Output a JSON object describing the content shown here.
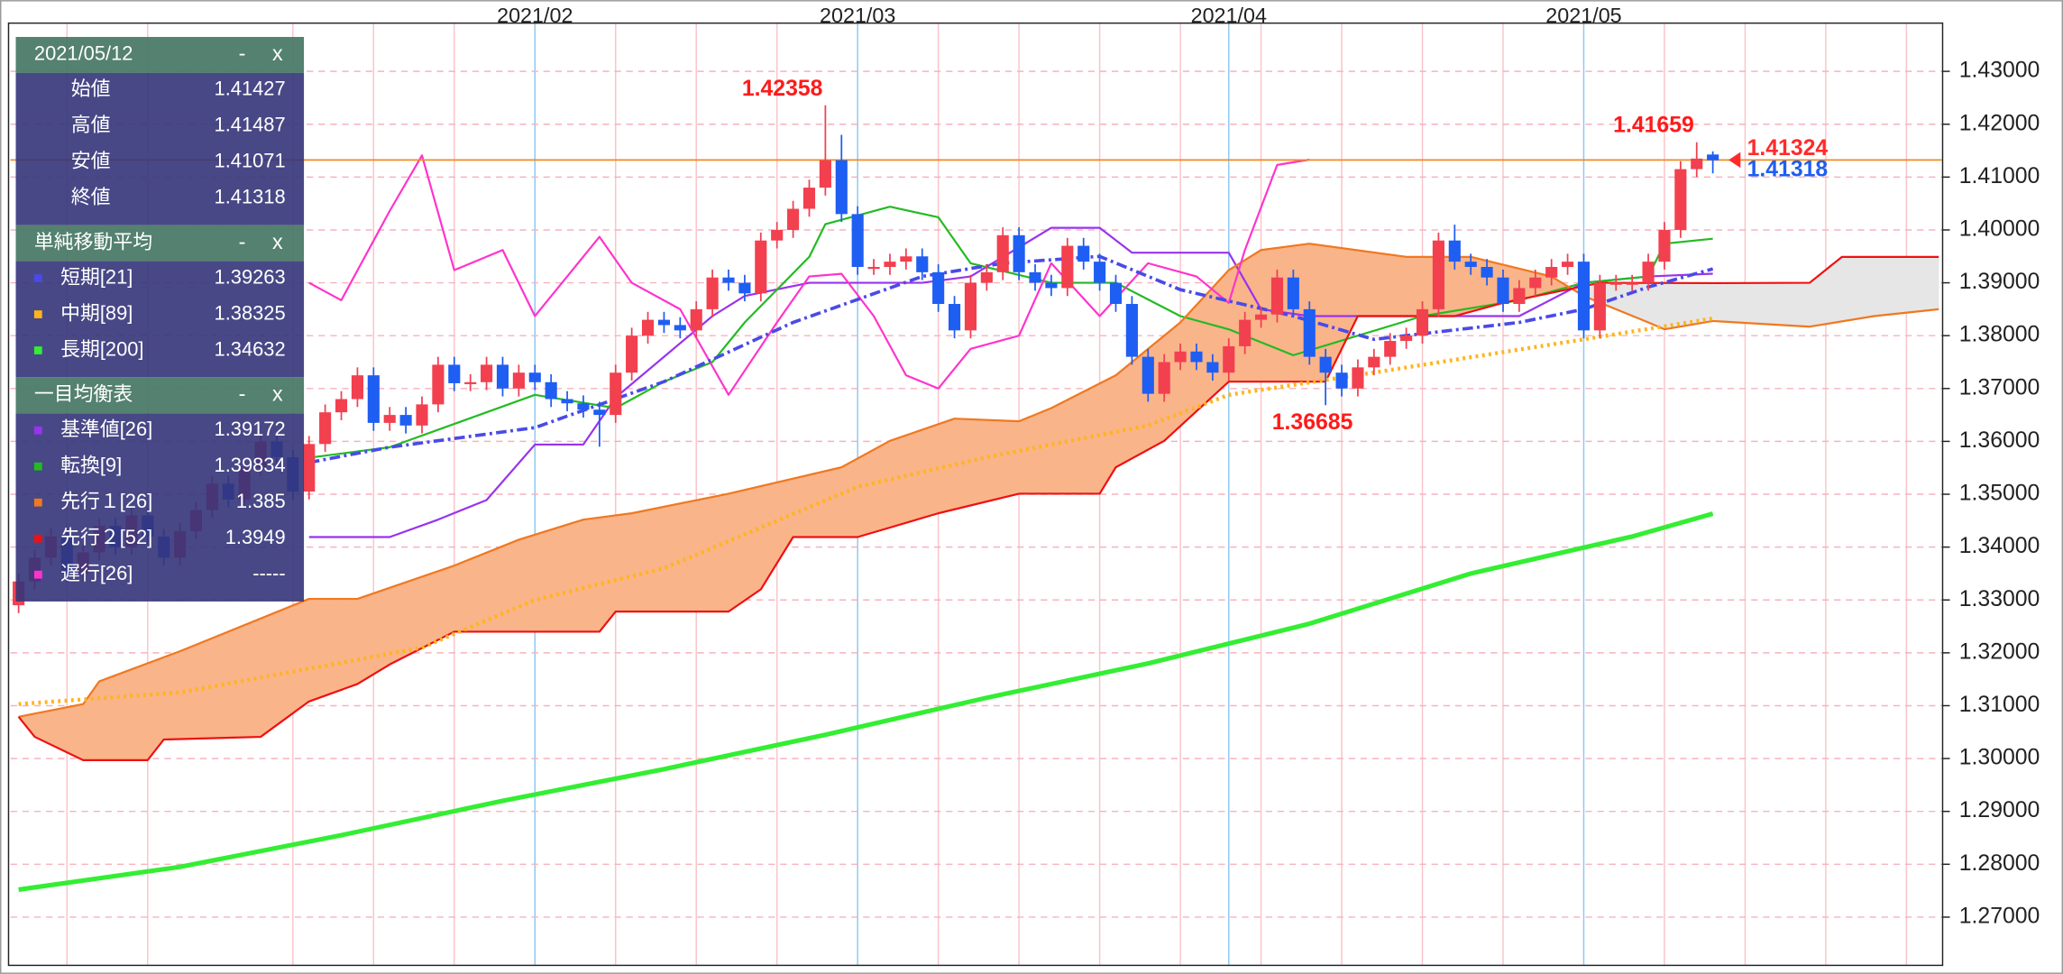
{
  "chart_data": {
    "type": "candlestick",
    "xlim": [
      -0.5,
      119.2
    ],
    "xticks": [
      {
        "value": 32,
        "label": "2021/02"
      },
      {
        "value": 52,
        "label": "2021/03"
      },
      {
        "value": 75,
        "label": "2021/04"
      },
      {
        "value": 97,
        "label": "2021/05"
      }
    ],
    "xgrid": [
      3,
      8,
      17,
      22,
      27,
      37,
      42,
      47,
      57,
      62,
      67,
      72,
      77,
      82,
      87,
      92,
      102,
      107,
      112,
      117
    ],
    "ylim": [
      1.261,
      1.439
    ],
    "yticks": [
      {
        "value": 1.27,
        "label": "1.27000"
      },
      {
        "value": 1.28,
        "label": "1.28000"
      },
      {
        "value": 1.29,
        "label": "1.29000"
      },
      {
        "value": 1.3,
        "label": "1.30000"
      },
      {
        "value": 1.31,
        "label": "1.31000"
      },
      {
        "value": 1.32,
        "label": "1.32000"
      },
      {
        "value": 1.33,
        "label": "1.33000"
      },
      {
        "value": 1.34,
        "label": "1.34000"
      },
      {
        "value": 1.35,
        "label": "1.35000"
      },
      {
        "value": 1.36,
        "label": "1.36000"
      },
      {
        "value": 1.37,
        "label": "1.37000"
      },
      {
        "value": 1.38,
        "label": "1.38000"
      },
      {
        "value": 1.39,
        "label": "1.39000"
      },
      {
        "value": 1.4,
        "label": "1.40000"
      },
      {
        "value": 1.41,
        "label": "1.41000"
      },
      {
        "value": 1.42,
        "label": "1.42000"
      },
      {
        "value": 1.43,
        "label": "1.43000"
      }
    ],
    "grid": true,
    "candles": {
      "up_color": "#f2404f",
      "down_color": "#1f5ef2",
      "open": [
        1.329,
        1.3335,
        1.338,
        1.342,
        1.335,
        1.339,
        1.344,
        1.34,
        1.346,
        1.342,
        1.338,
        1.343,
        1.347,
        1.352,
        1.349,
        1.355,
        1.36,
        1.357,
        1.3505,
        1.3595,
        1.3655,
        1.368,
        1.3725,
        1.3635,
        1.365,
        1.363,
        1.367,
        1.3745,
        1.371,
        1.3712,
        1.3745,
        1.37,
        1.373,
        1.3712,
        1.368,
        1.3672,
        1.366,
        1.365,
        1.373,
        1.38,
        1.383,
        1.382,
        1.381,
        1.385,
        1.391,
        1.39,
        1.388,
        1.398,
        1.4,
        1.404,
        1.408,
        1.4132,
        1.403,
        1.393,
        1.393,
        1.394,
        1.395,
        1.392,
        1.386,
        1.381,
        1.39,
        1.392,
        1.399,
        1.392,
        1.39,
        1.389,
        1.397,
        1.394,
        1.39,
        1.386,
        1.376,
        1.369,
        1.375,
        1.377,
        1.375,
        1.373,
        1.378,
        1.383,
        1.384,
        1.391,
        1.385,
        1.376,
        1.373,
        1.37,
        1.374,
        1.376,
        1.379,
        1.38,
        1.385,
        1.398,
        1.394,
        1.393,
        1.391,
        1.386,
        1.389,
        1.391,
        1.393,
        1.394,
        1.381,
        1.39,
        1.39,
        1.39,
        1.394,
        1.4,
        1.4115,
        1.41427
      ],
      "high": [
        1.335,
        1.3395,
        1.3435,
        1.3435,
        1.3405,
        1.3455,
        1.3455,
        1.3475,
        1.3475,
        1.3435,
        1.3445,
        1.3485,
        1.3535,
        1.3535,
        1.3565,
        1.3615,
        1.3615,
        1.3585,
        1.361,
        1.367,
        1.3695,
        1.374,
        1.374,
        1.3665,
        1.3665,
        1.3685,
        1.376,
        1.376,
        1.3727,
        1.376,
        1.376,
        1.3745,
        1.3745,
        1.3727,
        1.3695,
        1.3687,
        1.3675,
        1.3745,
        1.3815,
        1.3845,
        1.3845,
        1.3835,
        1.3865,
        1.3925,
        1.3925,
        1.3915,
        1.3995,
        1.4015,
        1.4055,
        1.4095,
        1.42358,
        1.418,
        1.4045,
        1.3945,
        1.3955,
        1.3965,
        1.3965,
        1.3935,
        1.3875,
        1.3915,
        1.3935,
        1.4005,
        1.4005,
        1.3935,
        1.3915,
        1.3985,
        1.3985,
        1.3955,
        1.3915,
        1.3875,
        1.3775,
        1.3765,
        1.3785,
        1.3785,
        1.3765,
        1.3795,
        1.3845,
        1.3855,
        1.3925,
        1.3925,
        1.3865,
        1.3775,
        1.3745,
        1.3755,
        1.3775,
        1.3805,
        1.3815,
        1.3865,
        1.3995,
        1.401,
        1.3955,
        1.3945,
        1.3925,
        1.3905,
        1.3925,
        1.3945,
        1.3955,
        1.3955,
        1.3915,
        1.3915,
        1.3915,
        1.3955,
        1.4015,
        1.413,
        1.41659,
        1.41487
      ],
      "low": [
        1.3275,
        1.332,
        1.3365,
        1.3335,
        1.3335,
        1.3375,
        1.3385,
        1.3385,
        1.3405,
        1.3365,
        1.3365,
        1.3415,
        1.3455,
        1.3475,
        1.3475,
        1.3535,
        1.3555,
        1.349,
        1.349,
        1.358,
        1.364,
        1.3665,
        1.362,
        1.362,
        1.3615,
        1.3615,
        1.3655,
        1.3695,
        1.3695,
        1.3697,
        1.3685,
        1.3685,
        1.3697,
        1.3665,
        1.3657,
        1.3645,
        1.359,
        1.3635,
        1.3715,
        1.3785,
        1.3805,
        1.3795,
        1.3795,
        1.3835,
        1.3885,
        1.3865,
        1.3865,
        1.3965,
        1.3985,
        1.4025,
        1.4065,
        1.4015,
        1.3915,
        1.3915,
        1.3915,
        1.3925,
        1.3905,
        1.3845,
        1.3795,
        1.3795,
        1.3885,
        1.3905,
        1.3905,
        1.3885,
        1.3875,
        1.3875,
        1.3925,
        1.3885,
        1.3845,
        1.3745,
        1.3675,
        1.3675,
        1.3735,
        1.3735,
        1.3715,
        1.3715,
        1.3765,
        1.3815,
        1.3825,
        1.3835,
        1.3745,
        1.36685,
        1.3685,
        1.3685,
        1.3725,
        1.3745,
        1.3775,
        1.3785,
        1.3835,
        1.3925,
        1.3915,
        1.3895,
        1.3845,
        1.3845,
        1.3875,
        1.3895,
        1.3915,
        1.3795,
        1.3795,
        1.3885,
        1.3885,
        1.3885,
        1.3925,
        1.3985,
        1.41,
        1.41071
      ],
      "close": [
        1.3335,
        1.338,
        1.342,
        1.335,
        1.339,
        1.344,
        1.34,
        1.346,
        1.342,
        1.338,
        1.343,
        1.347,
        1.352,
        1.349,
        1.355,
        1.36,
        1.357,
        1.3505,
        1.3595,
        1.3655,
        1.368,
        1.3725,
        1.3635,
        1.365,
        1.363,
        1.367,
        1.3745,
        1.371,
        1.3712,
        1.3745,
        1.37,
        1.373,
        1.3712,
        1.368,
        1.3672,
        1.366,
        1.365,
        1.373,
        1.38,
        1.383,
        1.382,
        1.381,
        1.385,
        1.391,
        1.39,
        1.388,
        1.398,
        1.4,
        1.404,
        1.408,
        1.4132,
        1.403,
        1.393,
        1.393,
        1.394,
        1.395,
        1.392,
        1.386,
        1.381,
        1.39,
        1.392,
        1.399,
        1.392,
        1.39,
        1.389,
        1.397,
        1.394,
        1.39,
        1.386,
        1.376,
        1.369,
        1.375,
        1.377,
        1.375,
        1.373,
        1.378,
        1.383,
        1.384,
        1.391,
        1.385,
        1.376,
        1.373,
        1.37,
        1.374,
        1.376,
        1.379,
        1.38,
        1.385,
        1.398,
        1.394,
        1.393,
        1.391,
        1.386,
        1.389,
        1.391,
        1.393,
        1.394,
        1.381,
        1.39,
        1.39,
        1.39,
        1.394,
        1.4,
        1.4115,
        1.4135,
        1.41318
      ]
    },
    "ask": 1.41324,
    "ask_color": "#ff2a2a",
    "price_line_color": "#f08c1e",
    "moving_averages_title": "単純移動平均",
    "moving_averages": [
      {
        "name": "短期[21]",
        "color": "#4a4ae8",
        "style": "dashdot",
        "width": 2.5,
        "x": [
          18,
          23,
          32,
          40,
          48,
          56,
          61,
          67,
          72,
          79,
          84,
          93,
          97,
          101,
          105
        ],
        "values": [
          1.356,
          1.3589,
          1.3626,
          1.3713,
          1.3825,
          1.3912,
          1.3937,
          1.395,
          1.3887,
          1.3837,
          1.3793,
          1.3825,
          1.385,
          1.3892,
          1.39263
        ]
      },
      {
        "name": "中期[89]",
        "color": "#ffb41e",
        "style": "dot",
        "width": 3,
        "x": [
          0,
          10,
          18,
          25,
          32,
          40,
          52,
          60,
          70,
          75,
          85,
          97,
          105
        ],
        "values": [
          1.3103,
          1.3125,
          1.317,
          1.321,
          1.33,
          1.336,
          1.3514,
          1.357,
          1.363,
          1.3688,
          1.3735,
          1.3793,
          1.38325
        ]
      },
      {
        "name": "長期[200]",
        "color": "#33ee33",
        "style": "solid",
        "width": 3.5,
        "x": [
          0,
          10,
          20,
          30,
          40,
          50,
          60,
          70,
          80,
          90,
          100,
          105
        ],
        "values": [
          1.2752,
          1.2795,
          1.2855,
          1.292,
          1.298,
          1.3045,
          1.3115,
          1.318,
          1.3255,
          1.335,
          1.342,
          1.34632
        ]
      }
    ],
    "ichimoku_title": "一目均衡表",
    "ichimoku": [
      {
        "name": "基準値[26]",
        "color": "#9933ee",
        "style": "solid",
        "width": 1.5,
        "x": [
          18,
          23,
          26,
          29,
          32,
          35,
          37,
          43,
          45,
          49,
          56,
          59,
          64,
          67,
          69,
          75,
          77,
          80,
          93,
          97,
          101,
          105
        ],
        "values": [
          1.3419,
          1.3419,
          1.3452,
          1.3489,
          1.3594,
          1.3594,
          1.3683,
          1.3837,
          1.3875,
          1.39,
          1.39,
          1.3912,
          1.4004,
          1.4004,
          1.3957,
          1.3957,
          1.385,
          1.3837,
          1.3837,
          1.39,
          1.3912,
          1.39172
        ]
      },
      {
        "name": "転換[9]",
        "color": "#22bb22",
        "style": "solid",
        "width": 1.5,
        "x": [
          18,
          23,
          32,
          37,
          40,
          43,
          45,
          49,
          50,
          54,
          57,
          59,
          64,
          68,
          72,
          75,
          79,
          87,
          93,
          97,
          101,
          102,
          105
        ],
        "values": [
          1.3569,
          1.3589,
          1.3688,
          1.3663,
          1.3713,
          1.375,
          1.3825,
          1.3949,
          1.4011,
          1.4044,
          1.4024,
          1.3937,
          1.39,
          1.39,
          1.3837,
          1.3812,
          1.3763,
          1.3837,
          1.3867,
          1.39,
          1.3912,
          1.3974,
          1.39834
        ]
      },
      {
        "name": "先行１[26]",
        "color": "#f07820",
        "style": "solid",
        "width": 1.5,
        "x": [
          0,
          4,
          5,
          10,
          18,
          21,
          27,
          31,
          35,
          38,
          44,
          51,
          54,
          58,
          62,
          64,
          68,
          72,
          75,
          77,
          80,
          86,
          90,
          95,
          97,
          101,
          102,
          105,
          111,
          115,
          119
        ],
        "values": [
          1.3079,
          1.3103,
          1.3146,
          1.3203,
          1.3302,
          1.3302,
          1.3365,
          1.3414,
          1.3452,
          1.3464,
          1.3501,
          1.3551,
          1.3601,
          1.3643,
          1.3638,
          1.3663,
          1.3725,
          1.3825,
          1.3924,
          1.3962,
          1.3974,
          1.3949,
          1.3949,
          1.3912,
          1.3875,
          1.3825,
          1.3812,
          1.38277,
          1.3817,
          1.3837,
          1.385
        ]
      },
      {
        "name": "先行２[52]",
        "color": "#ee1111",
        "style": "solid",
        "width": 1.5,
        "x": [
          0,
          1,
          4,
          8,
          9,
          15,
          18,
          21,
          23,
          27,
          36,
          37,
          44,
          46,
          48,
          52,
          57,
          62,
          67,
          68,
          71,
          75,
          81,
          83,
          89,
          92,
          98,
          105,
          111,
          113,
          119
        ],
        "values": [
          1.3079,
          1.3041,
          1.2997,
          1.2997,
          1.3036,
          1.3041,
          1.3108,
          1.3141,
          1.3178,
          1.324,
          1.324,
          1.3278,
          1.3278,
          1.332,
          1.3419,
          1.3419,
          1.3464,
          1.3501,
          1.3501,
          1.3551,
          1.3601,
          1.3713,
          1.3713,
          1.3837,
          1.3837,
          1.3862,
          1.39,
          1.38994,
          1.39,
          1.3949,
          1.3949
        ]
      },
      {
        "name": "遅行[26]",
        "color": "#ff33cc",
        "style": "solid",
        "width": 1.5,
        "current_label": "-----",
        "x": [
          18,
          20,
          23,
          25,
          27,
          30,
          32,
          34,
          36,
          38,
          41,
          44,
          47,
          49,
          51,
          53,
          55,
          57,
          59,
          62,
          64,
          67,
          70,
          73,
          75,
          76,
          78,
          80
        ],
        "values": [
          1.39,
          1.3867,
          1.4036,
          1.4141,
          1.3924,
          1.3962,
          1.3837,
          1.3912,
          1.3987,
          1.39,
          1.385,
          1.3688,
          1.3825,
          1.3912,
          1.3917,
          1.3837,
          1.3725,
          1.37,
          1.3775,
          1.38,
          1.3937,
          1.3837,
          1.3937,
          1.3912,
          1.3862,
          1.3962,
          1.4123,
          1.4133
        ]
      }
    ],
    "cloud": {
      "up_color": "#f9b48a",
      "down_color": "#e6e6e6"
    },
    "info_panel": {
      "date": "2021/05/12",
      "minimize": "-",
      "close": "x",
      "price_labels": [
        "始値",
        "高値",
        "安値",
        "終値"
      ]
    }
  }
}
